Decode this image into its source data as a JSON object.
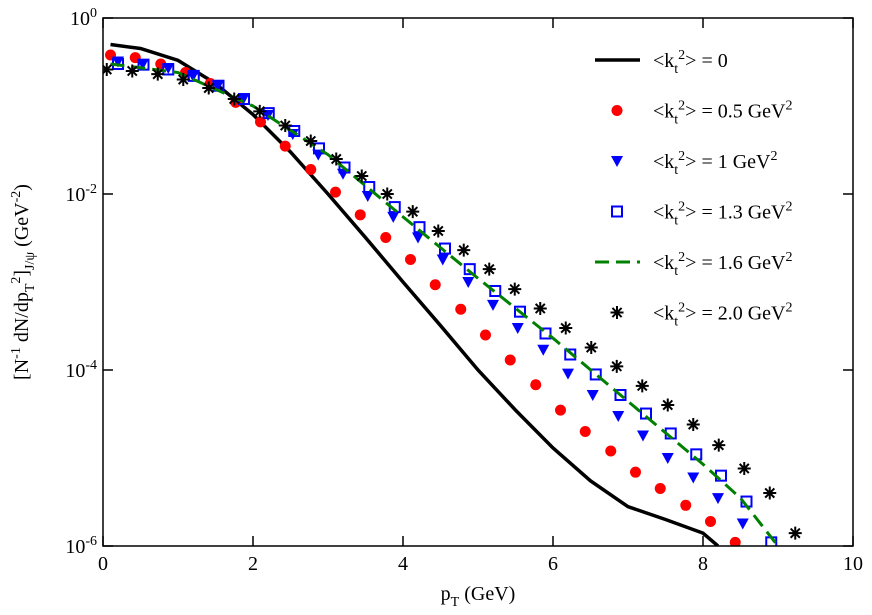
{
  "chart_data": {
    "type": "line",
    "xlabel": "p_T (GeV)",
    "ylabel": "[N^-1 dN/dp_T^2]_J/ψ (GeV^-2)",
    "xlim": [
      0,
      10
    ],
    "xticks": [
      0,
      2,
      4,
      6,
      8,
      10
    ],
    "ylim": [
      1e-06,
      1
    ],
    "ylog": true,
    "yticks": [
      {
        "value": 1,
        "label": "10^0"
      },
      {
        "value": 0.01,
        "label": "10^-2"
      },
      {
        "value": 0.0001,
        "label": "10^-4"
      },
      {
        "value": 1e-06,
        "label": "10^-6"
      }
    ],
    "legend": "upper right",
    "series": [
      {
        "name": "<k_t^2> = 0",
        "color": "#000000",
        "style": "solid",
        "x": [
          0.1,
          0.5,
          1,
          1.5,
          2,
          2.5,
          3,
          3.5,
          4,
          4.5,
          5,
          5.5,
          6,
          6.5,
          7,
          7.5,
          8,
          8.2
        ],
        "values": [
          0.5,
          0.45,
          0.33,
          0.18,
          0.08,
          0.03,
          0.01,
          0.0032,
          0.001,
          0.00032,
          0.0001,
          3.5e-05,
          1.3e-05,
          5.5e-06,
          2.8e-06,
          2e-06,
          1.4e-06,
          1e-06
        ]
      },
      {
        "name": "<k_t^2> = 0.5 GeV^2",
        "color": "#ff0000",
        "style": "circle",
        "x": [
          0.1,
          0.43,
          0.77,
          1.1,
          1.43,
          1.77,
          2.1,
          2.43,
          2.77,
          3.1,
          3.43,
          3.77,
          4.1,
          4.43,
          4.77,
          5.1,
          5.43,
          5.77,
          6.1,
          6.43,
          6.77,
          7.1,
          7.43,
          7.77,
          8.1,
          8.43
        ],
        "values": [
          0.38,
          0.355,
          0.3,
          0.24,
          0.18,
          0.11,
          0.066,
          0.035,
          0.019,
          0.0105,
          0.0058,
          0.0032,
          0.0018,
          0.00093,
          0.00049,
          0.00025,
          0.00013,
          6.8e-05,
          3.5e-05,
          2e-05,
          1.2e-05,
          6.9e-06,
          4.5e-06,
          2.9e-06,
          1.9e-06,
          1.1e-06
        ]
      },
      {
        "name": "<k_t^2> = 1 GeV^2",
        "color": "#0000ff",
        "style": "triangle",
        "x": [
          0.2,
          0.53,
          0.87,
          1.2,
          1.53,
          1.87,
          2.2,
          2.53,
          2.87,
          3.2,
          3.53,
          3.87,
          4.2,
          4.53,
          4.87,
          5.2,
          5.53,
          5.87,
          6.2,
          6.53,
          6.87,
          7.2,
          7.53,
          7.87,
          8.2,
          8.53
        ],
        "values": [
          0.32,
          0.3,
          0.27,
          0.22,
          0.17,
          0.12,
          0.079,
          0.048,
          0.028,
          0.017,
          0.0095,
          0.0055,
          0.0032,
          0.0018,
          0.001,
          0.00055,
          0.0003,
          0.00017,
          9.1e-05,
          5.2e-05,
          3e-05,
          1.8e-05,
          1e-05,
          6e-06,
          3.5e-06,
          1.8e-06
        ]
      },
      {
        "name": "<k_t^2> = 1.3 GeV^2",
        "color": "#0000ff",
        "style": "square",
        "x": [
          0.2,
          0.54,
          0.87,
          1.21,
          1.54,
          1.88,
          2.21,
          2.55,
          2.88,
          3.22,
          3.55,
          3.89,
          4.22,
          4.56,
          4.89,
          5.23,
          5.56,
          5.9,
          6.23,
          6.57,
          6.9,
          7.24,
          7.57,
          7.91,
          8.24,
          8.58,
          8.91
        ],
        "values": [
          0.3,
          0.295,
          0.26,
          0.22,
          0.17,
          0.12,
          0.083,
          0.052,
          0.033,
          0.02,
          0.012,
          0.0071,
          0.0042,
          0.0024,
          0.0014,
          0.00079,
          0.00046,
          0.00026,
          0.00015,
          8.9e-05,
          5.2e-05,
          3.2e-05,
          1.9e-05,
          1.1e-05,
          6.3e-06,
          3.2e-06,
          1.1e-06
        ]
      },
      {
        "name": "<k_t^2> = 1.6 GeV^2",
        "color": "#008000",
        "style": "dashed",
        "x": [
          0.1,
          1,
          2,
          3,
          4,
          5,
          6,
          7,
          8,
          8.5,
          9
        ],
        "values": [
          0.3,
          0.24,
          0.1,
          0.028,
          0.0055,
          0.0011,
          0.00023,
          4.4e-05,
          8.5e-06,
          3.5e-06,
          1e-06
        ]
      },
      {
        "name": "<k_t^2> = 2.0 GeV^2",
        "color": "#000000",
        "style": "star",
        "x": [
          0.05,
          0.39,
          0.73,
          1.07,
          1.41,
          1.75,
          2.09,
          2.43,
          2.77,
          3.11,
          3.45,
          3.79,
          4.13,
          4.47,
          4.81,
          5.15,
          5.49,
          5.83,
          6.17,
          6.51,
          6.85,
          7.19,
          7.53,
          7.87,
          8.21,
          8.55,
          8.89,
          9.23
        ],
        "values": [
          0.26,
          0.25,
          0.23,
          0.2,
          0.16,
          0.12,
          0.087,
          0.06,
          0.04,
          0.025,
          0.016,
          0.01,
          0.0063,
          0.0038,
          0.0023,
          0.0014,
          0.00083,
          0.0005,
          0.0003,
          0.00018,
          0.00011,
          6.6e-05,
          4e-05,
          2.4e-05,
          1.4e-05,
          7.6e-06,
          4e-06,
          1.4e-06
        ]
      }
    ]
  }
}
